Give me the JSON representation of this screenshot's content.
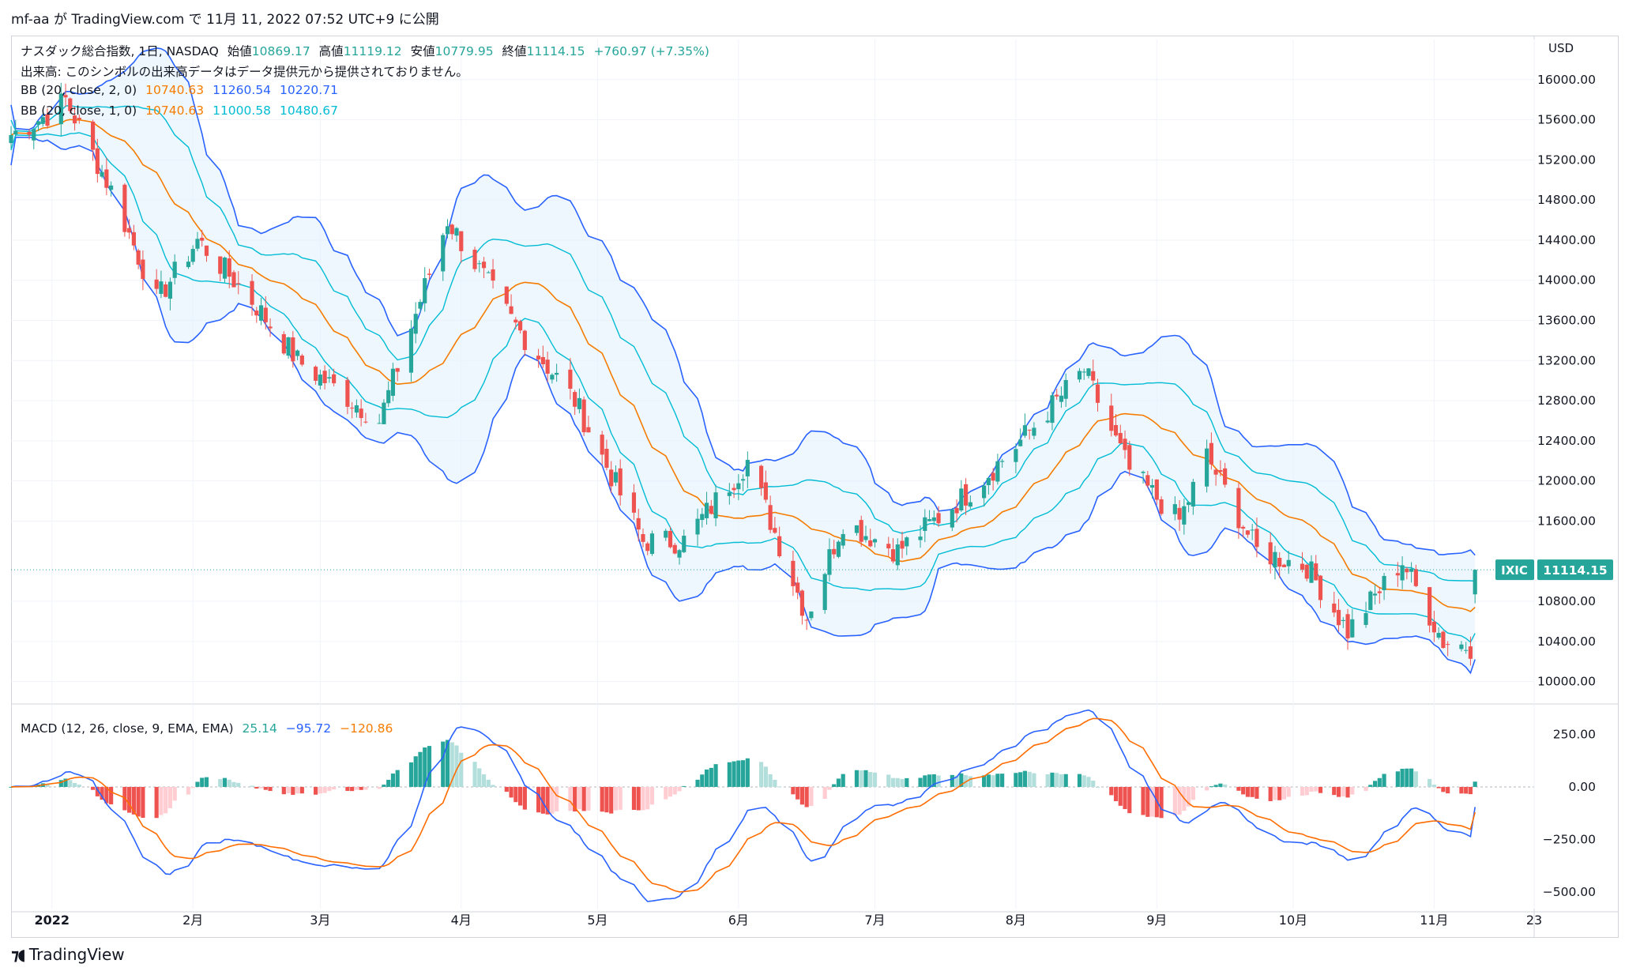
{
  "header": {
    "publish_line": "mf-aa が TradingView.com で 11月 11, 2022 07:52 UTC+9 に公開"
  },
  "legend": {
    "symbol_title": "ナスダック総合指数, 1日, NASDAQ",
    "open_label": "始値",
    "open": "10869.17",
    "high_label": "高値",
    "high": "11119.12",
    "low_label": "安値",
    "low": "10779.95",
    "close_label": "終値",
    "close": "11114.15",
    "change": "+760.97 (+7.35%)",
    "volume_note": "出来高: このシンボルの出来高データはデータ提供元から提供されておりません。",
    "bb2_label": "BB (20, close, 2, 0)",
    "bb2_basis": "10740.63",
    "bb2_upper": "11260.54",
    "bb2_lower": "10220.71",
    "bb1_label": "BB (20, close, 1, 0)",
    "bb1_basis": "10740.63",
    "bb1_upper": "11000.58",
    "bb1_lower": "10480.67",
    "macd_label": "MACD (12, 26, close, 9, EMA, EMA)",
    "macd_hist": "25.14",
    "macd_line": "−95.72",
    "macd_signal": "−120.86"
  },
  "axis": {
    "currency": "USD",
    "price_ticks": [
      "16000.00",
      "15600.00",
      "15200.00",
      "14800.00",
      "14400.00",
      "14000.00",
      "13600.00",
      "13200.00",
      "12800.00",
      "12400.00",
      "12000.00",
      "11600.00",
      "10800.00",
      "10400.00",
      "10000.00"
    ],
    "macd_ticks": [
      "250.00",
      "0.00",
      "−250.00",
      "−500.00"
    ],
    "time_labels": [
      "2022",
      "2月",
      "3月",
      "4月",
      "5月",
      "6月",
      "7月",
      "8月",
      "9月",
      "10月",
      "11月",
      "23"
    ],
    "last_symbol": "IXIC",
    "last_price": "11114.15"
  },
  "footer": {
    "brand": "TradingView"
  },
  "colors": {
    "up": "#26a69a",
    "down": "#ef5350",
    "bb_outer": "#2962ff",
    "bb_inner": "#00bcd4",
    "basis": "#f57c00",
    "band_fill": "#e3f2fd"
  },
  "chart_data": {
    "type": "candlestick",
    "title": "ナスダック総合指数, 1日, NASDAQ",
    "x_range": [
      "2021-12-23",
      "2022-11-23"
    ],
    "price_range": [
      9800,
      16400
    ],
    "macd_range": [
      -580,
      380
    ],
    "key_points": [
      {
        "date": "2021-12-23",
        "close": 15450
      },
      {
        "date": "2021-12-31",
        "close": 15650
      },
      {
        "date": "2022-01-04",
        "close": 15800
      },
      {
        "date": "2022-01-14",
        "close": 14900
      },
      {
        "date": "2022-01-24",
        "close": 13800
      },
      {
        "date": "2022-02-02",
        "close": 14400
      },
      {
        "date": "2022-02-14",
        "close": 13800
      },
      {
        "date": "2022-02-24",
        "close": 13200
      },
      {
        "date": "2022-03-08",
        "close": 12800
      },
      {
        "date": "2022-03-14",
        "close": 12600
      },
      {
        "date": "2022-03-29",
        "close": 14600
      },
      {
        "date": "2022-04-12",
        "close": 13600
      },
      {
        "date": "2022-04-26",
        "close": 12800
      },
      {
        "date": "2022-05-11",
        "close": 11400
      },
      {
        "date": "2022-05-20",
        "close": 11400
      },
      {
        "date": "2022-06-03",
        "close": 12200
      },
      {
        "date": "2022-06-16",
        "close": 10650
      },
      {
        "date": "2022-06-24",
        "close": 11600
      },
      {
        "date": "2022-07-06",
        "close": 11300
      },
      {
        "date": "2022-07-22",
        "close": 11900
      },
      {
        "date": "2022-08-01",
        "close": 12350
      },
      {
        "date": "2022-08-16",
        "close": 13100
      },
      {
        "date": "2022-08-26",
        "close": 12100
      },
      {
        "date": "2022-09-06",
        "close": 11600
      },
      {
        "date": "2022-09-12",
        "close": 12250
      },
      {
        "date": "2022-09-23",
        "close": 11300
      },
      {
        "date": "2022-10-04",
        "close": 11150
      },
      {
        "date": "2022-10-13",
        "close": 10500
      },
      {
        "date": "2022-10-25",
        "close": 11200
      },
      {
        "date": "2022-11-03",
        "close": 10400
      },
      {
        "date": "2022-11-09",
        "close": 10350
      },
      {
        "date": "2022-11-10",
        "open": 10869.17,
        "high": 11119.12,
        "low": 10779.95,
        "close": 11114.15
      }
    ],
    "last_bb": {
      "upper2": 11260.54,
      "upper1": 11000.58,
      "basis": 10740.63,
      "lower1": 10480.67,
      "lower2": 10220.71
    },
    "last_macd": {
      "histogram": 25.14,
      "macd": -95.72,
      "signal": -120.86
    }
  }
}
